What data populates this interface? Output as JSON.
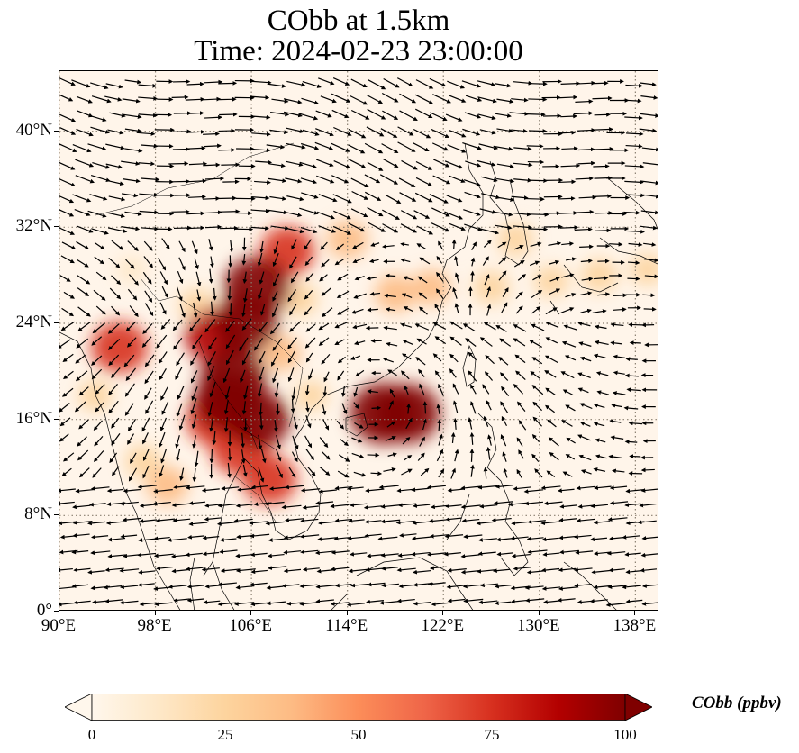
{
  "title_line1": "CObb at 1.5km",
  "title_line2": "Time: 2024-02-23 23:00:00",
  "map": {
    "lon_range": [
      90,
      140
    ],
    "lat_range": [
      0,
      45
    ],
    "lon_ticks": [
      "90°E",
      "98°E",
      "106°E",
      "114°E",
      "122°E",
      "130°E",
      "138°E"
    ],
    "lat_ticks": [
      "0°",
      "8°N",
      "16°N",
      "24°N",
      "32°N",
      "40°N"
    ],
    "lon_tick_values": [
      90,
      98,
      106,
      114,
      122,
      130,
      138
    ],
    "lat_tick_values": [
      0,
      8,
      16,
      24,
      32,
      40
    ],
    "background_color": "#fff5ea",
    "gridline_color": "#8a7f70",
    "coastline_color": "#000000",
    "vector_color": "#000000"
  },
  "colorbar": {
    "label": "CObb (ppbv)",
    "ticks": [
      "0",
      "25",
      "50",
      "75",
      "100"
    ],
    "tick_values": [
      0,
      25,
      50,
      75,
      100
    ],
    "range": [
      0,
      100
    ],
    "extend": "both",
    "colormap": "OrRd",
    "colors": [
      "#fff7ec",
      "#fee8c8",
      "#fdd49e",
      "#fdbb84",
      "#fc8d59",
      "#ef6548",
      "#d7301f",
      "#b30000",
      "#7f0000"
    ]
  },
  "plumes": [
    {
      "lon": 106.5,
      "lat": 27.0,
      "value": 100
    },
    {
      "lon": 105.5,
      "lat": 24.0,
      "value": 95
    },
    {
      "lon": 103.0,
      "lat": 23.0,
      "value": 85
    },
    {
      "lon": 109.0,
      "lat": 30.0,
      "value": 70
    },
    {
      "lon": 104.5,
      "lat": 19.5,
      "value": 100
    },
    {
      "lon": 104.0,
      "lat": 17.5,
      "value": 100
    },
    {
      "lon": 106.5,
      "lat": 16.0,
      "value": 95
    },
    {
      "lon": 103.0,
      "lat": 16.0,
      "value": 80
    },
    {
      "lon": 105.0,
      "lat": 13.5,
      "value": 75
    },
    {
      "lon": 107.5,
      "lat": 11.0,
      "value": 70
    },
    {
      "lon": 95.0,
      "lat": 22.0,
      "value": 75
    },
    {
      "lon": 117.0,
      "lat": 16.5,
      "value": 100
    },
    {
      "lon": 119.0,
      "lat": 16.5,
      "value": 95
    },
    {
      "lon": 114.0,
      "lat": 31.0,
      "value": 40
    },
    {
      "lon": 118.0,
      "lat": 26.5,
      "value": 40
    },
    {
      "lon": 121.0,
      "lat": 27.0,
      "value": 35
    },
    {
      "lon": 126.0,
      "lat": 27.0,
      "value": 30
    },
    {
      "lon": 131.0,
      "lat": 27.5,
      "value": 25
    },
    {
      "lon": 135.0,
      "lat": 28.0,
      "value": 30
    },
    {
      "lon": 139.0,
      "lat": 28.5,
      "value": 25
    },
    {
      "lon": 128.0,
      "lat": 31.0,
      "value": 30
    },
    {
      "lon": 99.0,
      "lat": 10.5,
      "value": 40
    },
    {
      "lon": 97.0,
      "lat": 12.5,
      "value": 30
    },
    {
      "lon": 93.0,
      "lat": 18.0,
      "value": 25
    },
    {
      "lon": 101.5,
      "lat": 25.5,
      "value": 30
    },
    {
      "lon": 108.5,
      "lat": 21.5,
      "value": 35
    },
    {
      "lon": 111.0,
      "lat": 18.0,
      "value": 20
    },
    {
      "lon": 96.0,
      "lat": 28.5,
      "value": 15
    },
    {
      "lon": 110.0,
      "lat": 26.0,
      "value": 30
    }
  ],
  "wind_pattern": "anticyclone over South China Sea (~114E, 18N); westerlies north of 30N; easterly trades south of 12N"
}
